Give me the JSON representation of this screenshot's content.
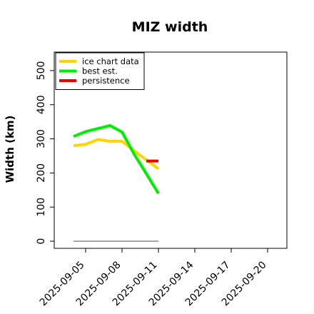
{
  "chart_data": {
    "type": "line",
    "title": "MIZ width",
    "xlabel": "",
    "ylabel": "Width (km)",
    "ylim": [
      0,
      550
    ],
    "xlim": [
      "2025-09-04",
      "2025-09-21"
    ],
    "yticks": [
      0,
      100,
      200,
      300,
      400,
      500
    ],
    "xticks": [
      "2025-09-05",
      "2025-09-08",
      "2025-09-11",
      "2025-09-14",
      "2025-09-17",
      "2025-09-20"
    ],
    "grid": false,
    "legend_position": "top-left",
    "series": [
      {
        "name": "ice chart data",
        "color": "#ffd400",
        "points": [
          {
            "x": "2025-09-04",
            "y": 280
          },
          {
            "x": "2025-09-05",
            "y": 284
          },
          {
            "x": "2025-09-06",
            "y": 298
          },
          {
            "x": "2025-09-07",
            "y": 293
          },
          {
            "x": "2025-09-08",
            "y": 293
          },
          {
            "x": "2025-09-09",
            "y": 265
          },
          {
            "x": "2025-09-10",
            "y": 238
          },
          {
            "x": "2025-09-11",
            "y": 212
          }
        ]
      },
      {
        "name": "best est.",
        "color": "#00ee00",
        "points": [
          {
            "x": "2025-09-04",
            "y": 307
          },
          {
            "x": "2025-09-05",
            "y": 321
          },
          {
            "x": "2025-09-06",
            "y": 330
          },
          {
            "x": "2025-09-07",
            "y": 339
          },
          {
            "x": "2025-09-08",
            "y": 320
          },
          {
            "x": "2025-09-09",
            "y": 255
          },
          {
            "x": "2025-09-10",
            "y": 198
          },
          {
            "x": "2025-09-11",
            "y": 140
          }
        ]
      },
      {
        "name": "persistence",
        "color": "#ee0000",
        "points": [
          {
            "x": "2025-09-10",
            "y": 235
          },
          {
            "x": "2025-09-11",
            "y": 235
          }
        ]
      },
      {
        "name": "",
        "color": "#888888",
        "points": [
          {
            "x": "2025-09-04",
            "y": 0
          },
          {
            "x": "2025-09-11",
            "y": 0
          }
        ]
      }
    ]
  }
}
